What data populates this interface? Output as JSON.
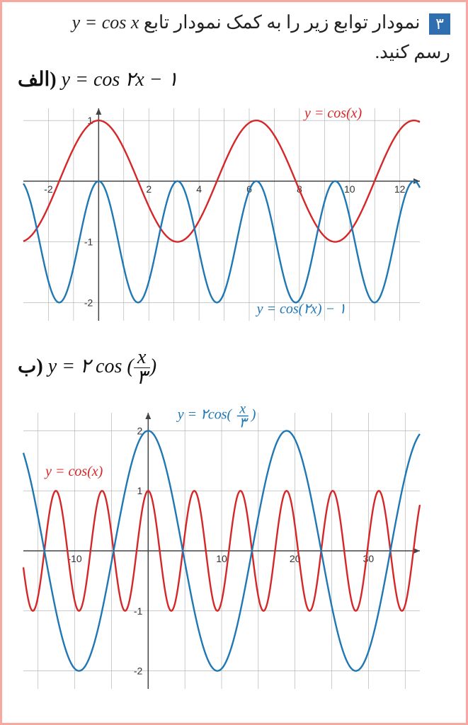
{
  "header": {
    "badge": "۳",
    "line1_rtl": "نمودار توابع زیر را به کمک نمودار تابع",
    "line1_formula_ltr": "y = cos x",
    "line2_rtl": "رسم کنید."
  },
  "partA": {
    "label_prefix": "الف)",
    "formula": "y = cos ۲x − ۱",
    "chart": {
      "type": "line",
      "xlim": [
        -3,
        12.8
      ],
      "ylim": [
        -2.3,
        1.2
      ],
      "xticks": [
        -2,
        2,
        4,
        6,
        8,
        10,
        12
      ],
      "yticks": [
        -2,
        -1,
        1
      ],
      "grid_x": [
        -2,
        -1,
        0,
        1,
        2,
        3,
        4,
        5,
        6,
        7,
        8,
        9,
        10,
        11,
        12
      ],
      "grid_y": [
        -2,
        -1,
        0,
        1
      ],
      "background": "#ffffff",
      "grid_color": "#aaaaaa",
      "axis_color": "#444444",
      "series": [
        {
          "name": "cos(x)",
          "color": "#d62728",
          "fn": "cos(x)",
          "legend": "y = cos(x)",
          "legend_pos": [
            8.2,
            1.05
          ]
        },
        {
          "name": "cos(2x)-1",
          "color": "#1f77b4",
          "fn": "cos(2x)-1",
          "legend": "y = cos(۲x) − ۱",
          "legend_pos": [
            6.3,
            -2.18
          ]
        }
      ],
      "label_fontsize": 14,
      "legend_fontsize": 20,
      "line_width": 2.4
    }
  },
  "partB": {
    "label_prefix": "ب)",
    "formula_html": "y = ۲ cos (<span class='frac'><span class='n'>x</span><span class='d'>۳</span></span>)",
    "chart": {
      "type": "line",
      "xlim": [
        -17,
        37
      ],
      "ylim": [
        -2.3,
        2.3
      ],
      "xticks": [
        -10,
        10,
        20,
        30
      ],
      "yticks": [
        -2,
        -1,
        1,
        2
      ],
      "grid_x": [
        -15,
        -10,
        -5,
        0,
        5,
        10,
        15,
        20,
        25,
        30,
        35
      ],
      "grid_y": [
        -2,
        -1,
        0,
        1,
        2
      ],
      "background": "#ffffff",
      "grid_color": "#aaaaaa",
      "axis_color": "#444444",
      "series": [
        {
          "name": "cos(x)",
          "color": "#d62728",
          "fn": "cos(x)",
          "legend": "y = cos(x)",
          "legend_pos": [
            -14,
            1.25
          ]
        },
        {
          "name": "2cos(x/3)",
          "color": "#1f77b4",
          "fn": "2cos(x/3)",
          "legend": "y = ۲cos(x/۳)",
          "legend_html": "y = ۲cos(<tspan>x</tspan>/<tspan>۳</tspan>)",
          "legend_pos": [
            4,
            2.2
          ]
        }
      ],
      "label_fontsize": 14,
      "legend_fontsize": 20,
      "line_width": 2.4
    }
  }
}
